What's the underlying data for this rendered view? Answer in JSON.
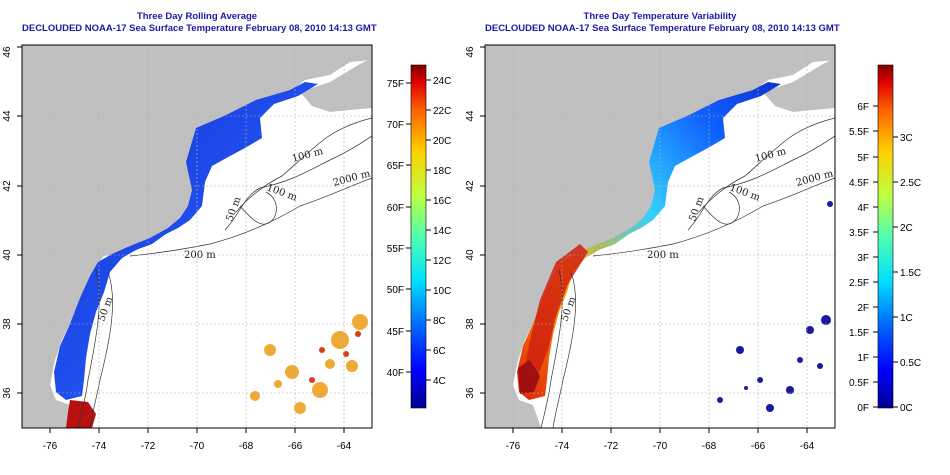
{
  "panels": [
    {
      "id": "left",
      "title": "Three Day Rolling Average",
      "subtitle": "DECLOUDED NOAA-17 Sea Surface Temperature February 08, 2010 14:13 GMT",
      "x_ticks": [
        "-76",
        "-74",
        "-72",
        "-70",
        "-68",
        "-66",
        "-64"
      ],
      "y_ticks": [
        "36",
        "38",
        "40",
        "42",
        "44",
        "46"
      ],
      "contour_labels": [
        "100 m",
        "2000 m",
        "100 m",
        "50 m",
        "200 m",
        "50 m"
      ],
      "colorbar": {
        "fahrenheit": [
          "75F",
          "70F",
          "65F",
          "60F",
          "55F",
          "50F",
          "45F",
          "40F"
        ],
        "celsius": [
          "24C",
          "22C",
          "20C",
          "18C",
          "16C",
          "14C",
          "12C",
          "10C",
          "8C",
          "6C",
          "4C"
        ]
      }
    },
    {
      "id": "right",
      "title": "Three Day Temperature Variability",
      "subtitle": "DECLOUDED NOAA-17 Sea Surface Temperature February 08, 2010 14:13 GMT",
      "x_ticks": [
        "-76",
        "-74",
        "-72",
        "-70",
        "-68",
        "-66",
        "-64"
      ],
      "y_ticks": [
        "36",
        "38",
        "40",
        "42",
        "44",
        "46"
      ],
      "contour_labels": [
        "100 m",
        "2000 m",
        "100 m",
        "50 m",
        "200 m",
        "50 m"
      ],
      "colorbar": {
        "fahrenheit": [
          "6F",
          "5.5F",
          "5F",
          "4.5F",
          "4F",
          "3.5F",
          "3F",
          "2.5F",
          "2F",
          "1.5F",
          "1F",
          "0.5F",
          "0F"
        ],
        "celsius": [
          "3C",
          "2.5C",
          "2C",
          "1.5C",
          "1C",
          "0.5C",
          "0C"
        ]
      }
    }
  ],
  "colors": {
    "land": "#c0c0c0",
    "cold_ocean": "#1a3ee0",
    "title_blue": "#1a1aa8",
    "colorbar": [
      "#00008f",
      "#0000ff",
      "#0070ff",
      "#00dfff",
      "#50ffaf",
      "#bfff40",
      "#ffcf00",
      "#ff6000",
      "#df0000",
      "#800000"
    ]
  }
}
